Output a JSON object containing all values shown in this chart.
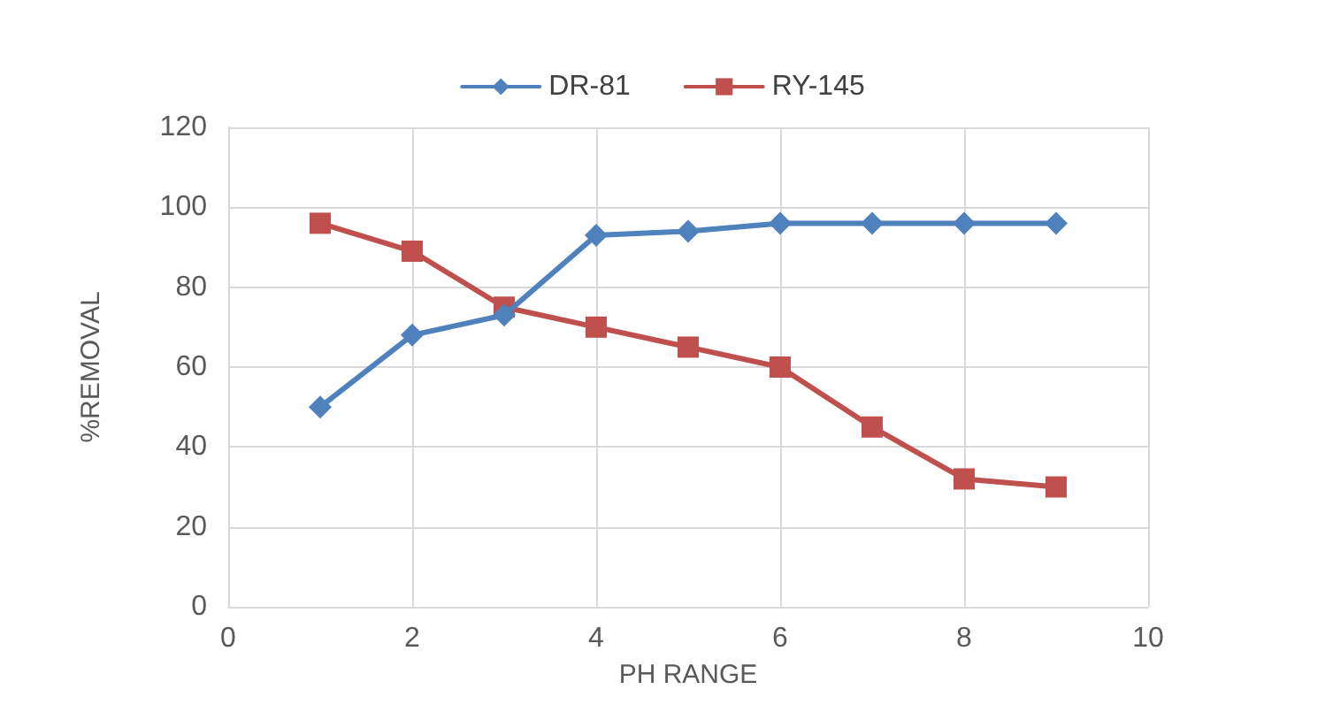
{
  "chart_data": {
    "type": "line",
    "xlabel": "PH RANGE",
    "ylabel": "%REMOVAL",
    "x": [
      1,
      2,
      3,
      4,
      5,
      6,
      7,
      8,
      9
    ],
    "series": [
      {
        "name": "DR-81",
        "color": "#4f81bd",
        "marker": "diamond",
        "values": [
          50,
          68,
          73,
          93,
          94,
          96,
          96,
          96,
          96
        ]
      },
      {
        "name": "RY-145",
        "color": "#c0504d",
        "marker": "square",
        "values": [
          96,
          89,
          75,
          70,
          65,
          60,
          45,
          32,
          30
        ]
      }
    ],
    "xlim": [
      0,
      10
    ],
    "xticks": [
      0,
      2,
      4,
      6,
      8,
      10
    ],
    "ylim": [
      0,
      120
    ],
    "yticks": [
      0,
      20,
      40,
      60,
      80,
      100,
      120
    ],
    "grid": true,
    "legend": "top",
    "line_style": "solid"
  }
}
